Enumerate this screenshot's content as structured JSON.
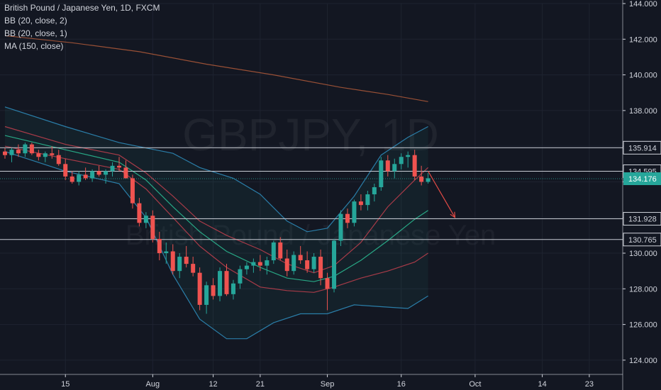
{
  "legend": {
    "title": "British Pound / Japanese Yen, 1D, FXCM",
    "bb2": "BB (20, close, 2)",
    "bb1": "BB (20, close, 1)",
    "ma": "MA (150, close)"
  },
  "watermark": {
    "symbol": "GBPJPY, 1D",
    "name": "British Pound / Japanese Yen"
  },
  "colors": {
    "background": "#131722",
    "up": "#26a69a",
    "down": "#ef5350",
    "bb_outer": "#2f8fbf",
    "bb_mid": "#2bbf95",
    "bb_inner": "#c2404e",
    "ma": "#b25a3a",
    "hline": "#c8ccd4",
    "price_tag": "#26a69a",
    "arrow": "#e04a45"
  },
  "chart_data": {
    "type": "candlestick",
    "ylim": [
      123.2,
      144.0
    ],
    "y_ticks": [
      "124.000",
      "126.000",
      "128.000",
      "130.000",
      "132.000",
      "134.000",
      "136.000",
      "138.000",
      "140.000",
      "142.000",
      "144.000"
    ],
    "y_tick_values": [
      124,
      126,
      128,
      130,
      132,
      134,
      136,
      138,
      140,
      142,
      144
    ],
    "x_ticks": [
      {
        "label": "15",
        "index": 9
      },
      {
        "label": "Aug",
        "index": 22
      },
      {
        "label": "12",
        "index": 31
      },
      {
        "label": "21",
        "index": 38
      },
      {
        "label": "Sep",
        "index": 48
      },
      {
        "label": "16",
        "index": 59
      },
      {
        "label": "Oct",
        "index": 70
      },
      {
        "label": "14",
        "index": 80
      },
      {
        "label": "23",
        "index": 87
      }
    ],
    "horizontal_levels": [
      {
        "value": 135.914,
        "label": "135.914"
      },
      {
        "value": 134.595,
        "label": "134.595"
      },
      {
        "value": 131.928,
        "label": "131.928"
      },
      {
        "value": 130.765,
        "label": "130.765"
      }
    ],
    "last_price": {
      "value": 134.176,
      "label": "134.176"
    },
    "ohlc": [
      [
        135.7,
        135.9,
        135.3,
        135.5
      ],
      [
        135.5,
        135.9,
        135.1,
        135.8
      ],
      [
        135.8,
        136.1,
        135.4,
        135.6
      ],
      [
        135.6,
        136.2,
        135.4,
        136.1
      ],
      [
        136.1,
        136.2,
        135.5,
        135.6
      ],
      [
        135.6,
        135.8,
        135.2,
        135.4
      ],
      [
        135.4,
        135.7,
        135.1,
        135.6
      ],
      [
        135.6,
        136.0,
        135.3,
        135.5
      ],
      [
        135.5,
        135.8,
        134.9,
        135.0
      ],
      [
        135.0,
        135.3,
        134.1,
        134.3
      ],
      [
        134.3,
        134.6,
        133.9,
        134.0
      ],
      [
        134.0,
        134.6,
        133.8,
        134.4
      ],
      [
        134.4,
        134.8,
        134.1,
        134.2
      ],
      [
        134.2,
        134.7,
        134.0,
        134.6
      ],
      [
        134.6,
        134.9,
        134.3,
        134.4
      ],
      [
        134.4,
        134.7,
        133.9,
        134.6
      ],
      [
        134.6,
        135.1,
        134.3,
        134.9
      ],
      [
        134.9,
        135.4,
        134.6,
        134.8
      ],
      [
        134.8,
        135.2,
        134.2,
        134.2
      ],
      [
        134.2,
        134.4,
        132.5,
        132.8
      ],
      [
        132.8,
        133.1,
        131.5,
        131.7
      ],
      [
        131.7,
        132.3,
        131.4,
        132.1
      ],
      [
        132.1,
        132.4,
        130.6,
        130.8
      ],
      [
        130.8,
        131.2,
        129.6,
        130.0
      ],
      [
        130.0,
        130.6,
        129.4,
        130.1
      ],
      [
        130.1,
        130.5,
        128.8,
        129.0
      ],
      [
        129.0,
        130.0,
        128.6,
        129.8
      ],
      [
        129.8,
        130.4,
        129.2,
        129.4
      ],
      [
        129.4,
        129.8,
        128.7,
        128.9
      ],
      [
        128.9,
        129.2,
        126.8,
        127.1
      ],
      [
        127.1,
        128.4,
        126.6,
        128.2
      ],
      [
        128.2,
        128.6,
        127.4,
        127.6
      ],
      [
        127.6,
        129.2,
        127.3,
        129.0
      ],
      [
        129.0,
        129.4,
        127.6,
        127.7
      ],
      [
        127.7,
        128.5,
        127.4,
        128.3
      ],
      [
        128.3,
        129.3,
        128.0,
        129.1
      ],
      [
        129.1,
        129.5,
        128.8,
        129.3
      ],
      [
        129.3,
        129.7,
        128.9,
        129.5
      ],
      [
        129.5,
        129.9,
        129.0,
        129.3
      ],
      [
        129.3,
        129.8,
        128.8,
        129.6
      ],
      [
        129.6,
        130.7,
        129.4,
        130.6
      ],
      [
        130.6,
        130.9,
        129.6,
        129.7
      ],
      [
        129.7,
        130.2,
        128.7,
        129.0
      ],
      [
        129.0,
        130.1,
        128.8,
        129.9
      ],
      [
        129.9,
        130.4,
        129.4,
        129.6
      ],
      [
        129.6,
        130.1,
        128.9,
        129.1
      ],
      [
        129.1,
        130.0,
        128.9,
        129.8
      ],
      [
        129.8,
        130.2,
        128.2,
        128.6
      ],
      [
        128.6,
        128.9,
        126.8,
        128.0
      ],
      [
        128.0,
        130.8,
        127.8,
        130.7
      ],
      [
        130.7,
        132.4,
        130.4,
        132.2
      ],
      [
        132.2,
        132.5,
        131.4,
        131.7
      ],
      [
        131.7,
        133.0,
        131.5,
        132.9
      ],
      [
        132.9,
        133.3,
        132.4,
        132.7
      ],
      [
        132.7,
        133.5,
        132.4,
        133.3
      ],
      [
        133.3,
        133.9,
        132.9,
        133.7
      ],
      [
        133.7,
        135.4,
        133.5,
        135.2
      ],
      [
        135.2,
        135.5,
        134.3,
        134.6
      ],
      [
        134.6,
        135.3,
        134.2,
        135.0
      ],
      [
        135.0,
        135.6,
        134.7,
        135.4
      ],
      [
        135.4,
        135.7,
        134.8,
        135.5
      ],
      [
        135.5,
        135.8,
        134.1,
        134.3
      ],
      [
        134.3,
        134.9,
        133.8,
        134.0
      ],
      [
        134.0,
        134.5,
        133.9,
        134.2
      ]
    ],
    "series": [
      {
        "name": "BB (20, close, 2)",
        "role": "outer_upper",
        "points": [
          [
            0,
            138.2
          ],
          [
            9,
            137.1
          ],
          [
            17,
            136.2
          ],
          [
            21,
            135.9
          ],
          [
            25,
            135.6
          ],
          [
            29,
            134.8
          ],
          [
            34,
            134.2
          ],
          [
            38,
            133.3
          ],
          [
            42,
            131.8
          ],
          [
            45,
            131.2
          ],
          [
            48,
            131.4
          ],
          [
            52,
            133.2
          ],
          [
            56,
            135.5
          ],
          [
            60,
            136.5
          ],
          [
            63,
            137.1
          ]
        ]
      },
      {
        "name": "BB (20, close, 2)",
        "role": "outer_lower",
        "points": [
          [
            0,
            135.7
          ],
          [
            9,
            134.6
          ],
          [
            17,
            133.9
          ],
          [
            21,
            132.0
          ],
          [
            25,
            128.8
          ],
          [
            29,
            126.3
          ],
          [
            33,
            125.2
          ],
          [
            36,
            125.2
          ],
          [
            40,
            126.1
          ],
          [
            44,
            126.6
          ],
          [
            48,
            126.6
          ],
          [
            52,
            127.1
          ],
          [
            56,
            127.0
          ],
          [
            60,
            126.9
          ],
          [
            63,
            127.6
          ]
        ]
      },
      {
        "name": "BB (20, close, 1)",
        "role": "inner_upper",
        "points": [
          [
            0,
            137.1
          ],
          [
            9,
            136.1
          ],
          [
            17,
            135.5
          ],
          [
            21,
            134.5
          ],
          [
            25,
            133.2
          ],
          [
            29,
            131.8
          ],
          [
            33,
            131.0
          ],
          [
            38,
            130.2
          ],
          [
            42,
            129.4
          ],
          [
            46,
            128.9
          ],
          [
            49,
            129.3
          ],
          [
            53,
            130.6
          ],
          [
            57,
            132.6
          ],
          [
            61,
            134.1
          ],
          [
            63,
            134.8
          ]
        ]
      },
      {
        "name": "BB (20, close, 1)",
        "role": "inner_lower",
        "points": [
          [
            0,
            136.0
          ],
          [
            9,
            135.3
          ],
          [
            17,
            134.7
          ],
          [
            21,
            133.6
          ],
          [
            25,
            132.0
          ],
          [
            29,
            130.4
          ],
          [
            33,
            129.2
          ],
          [
            38,
            128.1
          ],
          [
            42,
            127.9
          ],
          [
            46,
            127.8
          ],
          [
            49,
            128.1
          ],
          [
            53,
            128.6
          ],
          [
            57,
            129.0
          ],
          [
            61,
            129.5
          ],
          [
            63,
            130.0
          ]
        ]
      },
      {
        "name": "BB (20, close, 1)",
        "role": "basis",
        "points": [
          [
            0,
            136.6
          ],
          [
            9,
            135.8
          ],
          [
            17,
            135.1
          ],
          [
            21,
            134.1
          ],
          [
            25,
            132.6
          ],
          [
            29,
            131.2
          ],
          [
            33,
            130.1
          ],
          [
            38,
            129.2
          ],
          [
            42,
            128.6
          ],
          [
            46,
            128.4
          ],
          [
            49,
            128.7
          ],
          [
            53,
            129.6
          ],
          [
            57,
            130.7
          ],
          [
            61,
            131.9
          ],
          [
            63,
            132.4
          ]
        ]
      },
      {
        "name": "MA (150, close)",
        "role": "ma",
        "points": [
          [
            0,
            142.2
          ],
          [
            10,
            141.8
          ],
          [
            20,
            141.3
          ],
          [
            30,
            140.6
          ],
          [
            40,
            140.0
          ],
          [
            50,
            139.3
          ],
          [
            57,
            138.9
          ],
          [
            63,
            138.5
          ]
        ]
      }
    ],
    "projection_arrow": {
      "from": [
        63,
        134.6
      ],
      "to": [
        67,
        132.0
      ]
    }
  }
}
